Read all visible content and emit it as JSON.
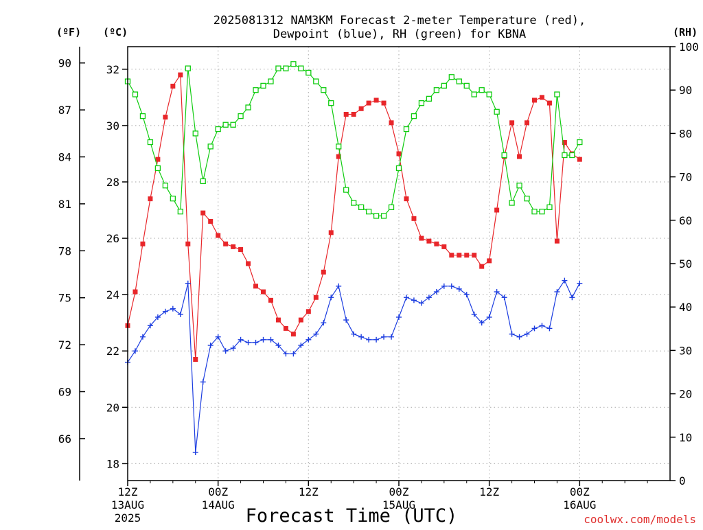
{
  "chart_data": {
    "type": "line",
    "title": "2025081312 NAM3KM Forecast 2-meter Temperature (red),",
    "subtitle": "Dewpoint (blue), RH (green) for KBNA",
    "xlabel": "Forecast Time (UTC)",
    "credit": "coolwx.com/models",
    "y_left_outer_unit": "(ºF)",
    "y_left_inner_unit": "(ºC)",
    "y_right_unit": "(RH)",
    "x_range_hours": [
      0,
      72
    ],
    "x_ticks": [
      {
        "hour": 0,
        "lines": [
          "12Z",
          "13AUG",
          "2025"
        ]
      },
      {
        "hour": 12,
        "lines": [
          "00Z",
          "14AUG"
        ]
      },
      {
        "hour": 24,
        "lines": [
          "12Z"
        ]
      },
      {
        "hour": 36,
        "lines": [
          "00Z",
          "15AUG"
        ]
      },
      {
        "hour": 48,
        "lines": [
          "12Z"
        ]
      },
      {
        "hour": 60,
        "lines": [
          "00Z",
          "16AUG"
        ]
      }
    ],
    "y_celsius_range": [
      17.4,
      32.8
    ],
    "y_celsius_ticks": [
      "18",
      "20",
      "22",
      "24",
      "26",
      "28",
      "30",
      "32"
    ],
    "y_fahrenheit_ticks": [
      "66",
      "69",
      "72",
      "75",
      "78",
      "81",
      "84",
      "87",
      "90"
    ],
    "y_rh_range": [
      0,
      100
    ],
    "y_rh_ticks": [
      "0",
      "10",
      "20",
      "30",
      "40",
      "50",
      "60",
      "70",
      "80",
      "90",
      "100"
    ],
    "grid": true,
    "colors": {
      "temperature": "#e8262a",
      "dewpoint": "#1c3de0",
      "rh": "#10cc10"
    },
    "series": [
      {
        "name": "Temperature",
        "unit": "C",
        "marker": "filled-square",
        "x": [
          0,
          1,
          2,
          3,
          4,
          5,
          6,
          7,
          8,
          9,
          10,
          11,
          12,
          13,
          14,
          15,
          16,
          17,
          18,
          19,
          20,
          21,
          22,
          23,
          24,
          25,
          26,
          27,
          28,
          29,
          30,
          31,
          32,
          33,
          34,
          35,
          36,
          37,
          38,
          39,
          40,
          41,
          42,
          43,
          44,
          45,
          46,
          47,
          48,
          49,
          50,
          51,
          52,
          53,
          54,
          55,
          56,
          57,
          58,
          59,
          60
        ],
        "values": [
          22.9,
          24.1,
          25.8,
          27.4,
          28.8,
          30.3,
          31.4,
          31.8,
          25.8,
          21.7,
          26.9,
          26.6,
          26.1,
          25.8,
          25.7,
          25.6,
          25.1,
          24.3,
          24.1,
          23.8,
          23.1,
          22.8,
          22.6,
          23.1,
          23.4,
          23.9,
          24.8,
          26.2,
          28.9,
          30.4,
          30.4,
          30.6,
          30.8,
          30.9,
          30.8,
          30.1,
          29.0,
          27.4,
          26.7,
          26.0,
          25.9,
          25.8,
          25.7,
          25.4,
          25.4,
          25.4,
          25.4,
          25.0,
          25.2,
          27.0,
          28.9,
          30.1,
          28.9,
          30.1,
          30.9,
          31.0,
          30.8,
          25.9,
          29.4,
          29.0,
          28.8
        ]
      },
      {
        "name": "Dewpoint",
        "unit": "C",
        "marker": "plus",
        "x": [
          0,
          1,
          2,
          3,
          4,
          5,
          6,
          7,
          8,
          9,
          10,
          11,
          12,
          13,
          14,
          15,
          16,
          17,
          18,
          19,
          20,
          21,
          22,
          23,
          24,
          25,
          26,
          27,
          28,
          29,
          30,
          31,
          32,
          33,
          34,
          35,
          36,
          37,
          38,
          39,
          40,
          41,
          42,
          43,
          44,
          45,
          46,
          47,
          48,
          49,
          50,
          51,
          52,
          53,
          54,
          55,
          56,
          57,
          58,
          59,
          60
        ],
        "values": [
          21.6,
          22.0,
          22.5,
          22.9,
          23.2,
          23.4,
          23.5,
          23.3,
          24.4,
          18.4,
          20.9,
          22.2,
          22.5,
          22.0,
          22.1,
          22.4,
          22.3,
          22.3,
          22.4,
          22.4,
          22.2,
          21.9,
          21.9,
          22.2,
          22.4,
          22.6,
          23.0,
          23.9,
          24.3,
          23.1,
          22.6,
          22.5,
          22.4,
          22.4,
          22.5,
          22.5,
          23.2,
          23.9,
          23.8,
          23.7,
          23.9,
          24.1,
          24.3,
          24.3,
          24.2,
          24.0,
          23.3,
          23.0,
          23.2,
          24.1,
          23.9,
          22.6,
          22.5,
          22.6,
          22.8,
          22.9,
          22.8,
          24.1,
          24.5,
          23.9,
          24.4
        ]
      },
      {
        "name": "RH",
        "unit": "%",
        "marker": "open-square",
        "x": [
          0,
          1,
          2,
          3,
          4,
          5,
          6,
          7,
          8,
          9,
          10,
          11,
          12,
          13,
          14,
          15,
          16,
          17,
          18,
          19,
          20,
          21,
          22,
          23,
          24,
          25,
          26,
          27,
          28,
          29,
          30,
          31,
          32,
          33,
          34,
          35,
          36,
          37,
          38,
          39,
          40,
          41,
          42,
          43,
          44,
          45,
          46,
          47,
          48,
          49,
          50,
          51,
          52,
          53,
          54,
          55,
          56,
          57,
          58,
          59,
          60
        ],
        "values": [
          92,
          89,
          84,
          78,
          72,
          68,
          65,
          62,
          95,
          80,
          69,
          77,
          81,
          82,
          82,
          84,
          86,
          90,
          91,
          92,
          95,
          95,
          96,
          95,
          94,
          92,
          90,
          87,
          77,
          67,
          64,
          63,
          62,
          61,
          61,
          63,
          72,
          81,
          84,
          87,
          88,
          90,
          91,
          93,
          92,
          91,
          89,
          90,
          89,
          85,
          75,
          64,
          68,
          65,
          62,
          62,
          63,
          89,
          75,
          75,
          78
        ]
      }
    ]
  }
}
